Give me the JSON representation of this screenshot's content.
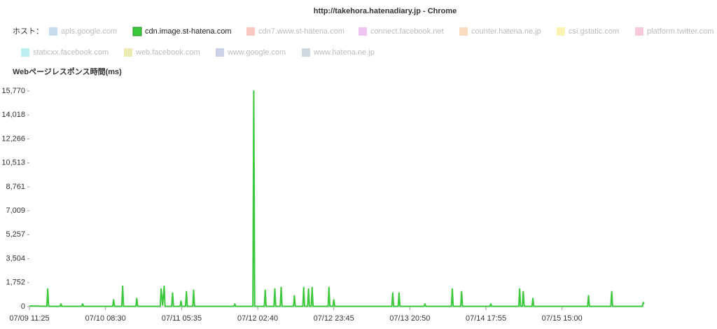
{
  "chart_data": {
    "type": "line",
    "title": "http://takehora.hatenadiary.jp - Chrome",
    "legend_title": "ホスト：",
    "y_label": "Webページレスポンス時間(ms)",
    "series": [
      {
        "name": "apis.google.com",
        "color": "#c8dcf0",
        "hidden": true
      },
      {
        "name": "cdn.image.st-hatena.com",
        "color": "#3cc83c",
        "hidden": false,
        "values": [
          50,
          20,
          1300,
          20,
          20,
          200,
          20,
          20,
          200,
          20,
          20,
          500,
          20,
          20,
          1500,
          20,
          20,
          600,
          20,
          20,
          1300,
          100,
          1500,
          20,
          20,
          1000,
          20,
          20,
          400,
          20,
          20,
          1100,
          20,
          20,
          1200,
          20,
          20,
          200,
          20,
          20,
          15770,
          20,
          20,
          1200,
          20,
          20,
          1300,
          20,
          20,
          1400,
          20,
          20,
          800,
          20,
          20,
          1400,
          20,
          20,
          1300,
          20,
          20,
          1400,
          20,
          20,
          1400,
          20,
          20,
          500,
          20,
          20,
          1000,
          20,
          20,
          1000,
          20,
          20,
          200,
          20,
          20,
          1300,
          20,
          20,
          1100,
          20,
          20,
          200,
          20,
          20,
          1300,
          20,
          20,
          1100,
          20,
          20,
          600,
          20,
          20,
          800,
          20,
          20,
          1100,
          20,
          20,
          300,
          200
        ]
      },
      {
        "name": "cdn7.www.st-hatena.com",
        "color": "#f8c8c0",
        "hidden": true
      },
      {
        "name": "connect.facebook.net",
        "color": "#f0c4f0",
        "hidden": true
      },
      {
        "name": "counter.hatena.ne.jp",
        "color": "#fbdcc0",
        "hidden": true
      },
      {
        "name": "csi.gstatic.com",
        "color": "#fbf3b4",
        "hidden": true
      },
      {
        "name": "platform.twitter.com",
        "color": "#f8c8dc",
        "hidden": true
      },
      {
        "name": "staticxx.facebook.com",
        "color": "#bcf0f0",
        "hidden": true
      },
      {
        "name": "web.facebook.com",
        "color": "#ecebb4",
        "hidden": true
      },
      {
        "name": "www.google.com",
        "color": "#cccfe8",
        "hidden": true
      },
      {
        "name": "www.hatena.ne.jp",
        "color": "#cbd8e0",
        "hidden": true
      }
    ],
    "x": [
      "07/09 11:25",
      "07/09 16:15",
      "07/09 16:30",
      "07/09 16:45",
      "07/09 19:55",
      "07/09 20:10",
      "07/09 20:25",
      "07/10 01:55",
      "07/10 02:10",
      "07/10 02:25",
      "07/10 10:30",
      "07/10 10:45",
      "07/10 11:00",
      "07/10 13:00",
      "07/10 13:15",
      "07/10 13:30",
      "07/10 16:55",
      "07/10 17:10",
      "07/10 17:25",
      "07/10 23:40",
      "07/10 23:55",
      "07/11 00:20",
      "07/11 00:45",
      "07/11 01:00",
      "07/11 02:50",
      "07/11 03:05",
      "07/11 03:20",
      "07/11 05:10",
      "07/11 05:25",
      "07/11 05:40",
      "07/11 06:40",
      "07/11 06:55",
      "07/11 07:10",
      "07/11 08:40",
      "07/11 08:55",
      "07/11 09:10",
      "07/11 20:05",
      "07/11 20:20",
      "07/11 20:35",
      "07/12 01:20",
      "07/12 01:35",
      "07/12 01:50",
      "07/12 04:30",
      "07/12 04:45",
      "07/12 05:00",
      "07/12 07:10",
      "07/12 07:25",
      "07/12 07:40",
      "07/12 08:55",
      "07/12 09:10",
      "07/12 09:25",
      "07/12 12:35",
      "07/12 12:50",
      "07/12 13:05",
      "07/12 15:10",
      "07/12 15:25",
      "07/12 15:40",
      "07/12 16:30",
      "07/12 16:45",
      "07/12 17:00",
      "07/12 17:30",
      "07/12 17:45",
      "07/12 18:00",
      "07/12 22:10",
      "07/12 22:25",
      "07/12 22:40",
      "07/12 23:30",
      "07/12 23:45",
      "07/13 00:00",
      "07/13 15:50",
      "07/13 16:05",
      "07/13 16:20",
      "07/13 17:35",
      "07/13 17:50",
      "07/13 18:05",
      "07/14 00:45",
      "07/14 01:00",
      "07/14 01:15",
      "07/14 08:20",
      "07/14 08:35",
      "07/14 08:50",
      "07/14 10:55",
      "07/14 11:10",
      "07/14 11:25",
      "07/14 19:00",
      "07/14 19:15",
      "07/14 19:30",
      "07/15 03:00",
      "07/15 03:15",
      "07/15 03:30",
      "07/15 04:00",
      "07/15 04:15",
      "07/15 04:30",
      "07/15 06:40",
      "07/15 06:55",
      "07/15 07:10",
      "07/15 22:05",
      "07/15 22:20",
      "07/15 22:35",
      "07/16 04:30",
      "07/16 04:45",
      "07/16 05:00",
      "07/16 13:15",
      "07/16 13:30",
      "07/16 13:45"
    ],
    "xlim": [
      "07/09 11:25",
      "07/16 13:45"
    ],
    "xticks": [
      "07/09 11:25",
      "07/10 08:30",
      "07/11 05:35",
      "07/12 02:40",
      "07/12 23:45",
      "07/13 20:50",
      "07/14 17:55",
      "07/15 15:00"
    ],
    "ylim": [
      0,
      15770
    ],
    "yticks": [
      0,
      {
        "value": 1752,
        "label": "1,752"
      },
      {
        "value": 3504,
        "label": "3,504"
      },
      {
        "value": 5257,
        "label": "5,257"
      },
      {
        "value": 7009,
        "label": "7,009"
      },
      {
        "value": 8761,
        "label": "8,761"
      },
      {
        "value": 10513,
        "label": "10,513"
      },
      {
        "value": 12266,
        "label": "12,266"
      },
      {
        "value": 14018,
        "label": "14,018"
      },
      {
        "value": 15770,
        "label": "15,770"
      }
    ],
    "grid": false
  }
}
